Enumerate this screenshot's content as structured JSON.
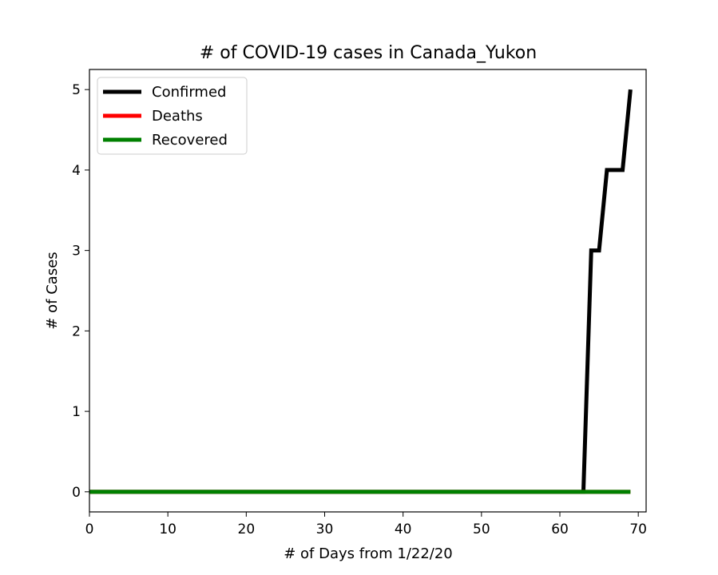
{
  "chart_data": {
    "type": "line",
    "title": "# of COVID-19 cases in Canada_Yukon",
    "xlabel": "# of Days from 1/22/20",
    "ylabel": "# of Cases",
    "xlim": [
      0,
      71
    ],
    "ylim": [
      -0.25,
      5.25
    ],
    "xticks": [
      0,
      10,
      20,
      30,
      40,
      50,
      60,
      70
    ],
    "yticks": [
      0,
      1,
      2,
      3,
      4,
      5
    ],
    "grid": false,
    "legend_position": "top-left",
    "series": [
      {
        "name": "Confirmed",
        "color": "#000000",
        "points": [
          [
            0,
            0
          ],
          [
            63,
            0
          ],
          [
            64,
            3
          ],
          [
            65,
            3
          ],
          [
            66,
            4
          ],
          [
            67,
            4
          ],
          [
            68,
            4
          ],
          [
            69,
            5
          ]
        ]
      },
      {
        "name": "Deaths",
        "color": "#ff0000",
        "points": [
          [
            0,
            0
          ],
          [
            69,
            0
          ]
        ]
      },
      {
        "name": "Recovered",
        "color": "#008000",
        "points": [
          [
            0,
            0
          ],
          [
            69,
            0
          ]
        ]
      }
    ]
  }
}
